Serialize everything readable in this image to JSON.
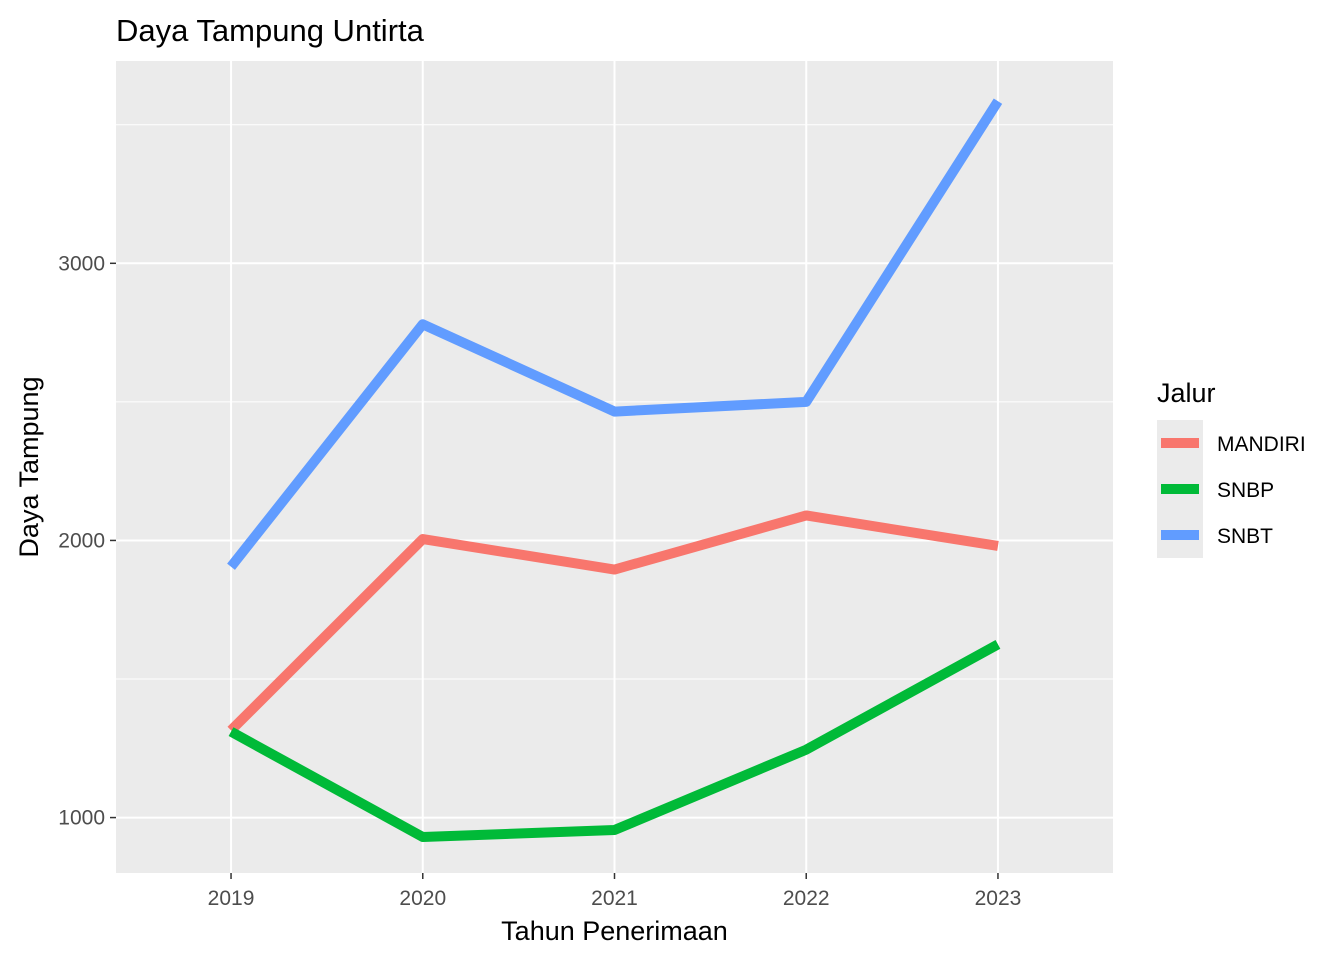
{
  "chart_data": {
    "type": "line",
    "title": "Daya Tampung Untirta",
    "xlabel": "Tahun Penerimaan",
    "ylabel": "Daya Tampung",
    "x": [
      2019,
      2020,
      2021,
      2022,
      2023
    ],
    "xlim": [
      2018.4,
      2023.6
    ],
    "ylim": [
      800,
      3730
    ],
    "y_ticks": [
      1000,
      2000,
      3000
    ],
    "grid": true,
    "legend": {
      "title": "Jalur",
      "position": "right"
    },
    "series": [
      {
        "name": "MANDIRI",
        "color": "#F8766D",
        "values": [
          1315,
          2005,
          1895,
          2090,
          1980
        ]
      },
      {
        "name": "SNBP",
        "color": "#00BA38",
        "values": [
          1310,
          930,
          955,
          1245,
          1625
        ]
      },
      {
        "name": "SNBT",
        "color": "#619CFF",
        "values": [
          1905,
          2780,
          2465,
          2500,
          3585
        ]
      }
    ]
  }
}
